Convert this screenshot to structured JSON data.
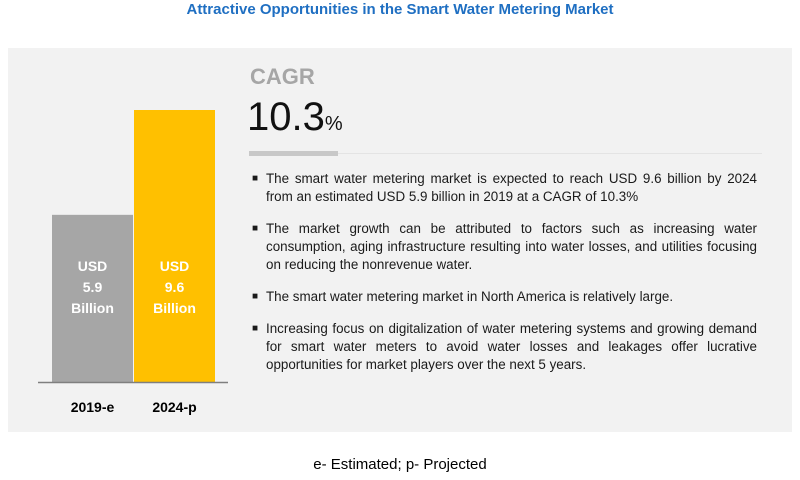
{
  "title": "Attractive Opportunities in the Smart Water Metering Market",
  "cagr": {
    "label": "CAGR",
    "value": "10.3",
    "unit": "%"
  },
  "bullets": [
    "The smart water metering market is expected to reach USD 9.6 billion by 2024 from an estimated USD 5.9 billion in 2019 at a CAGR of 10.3%",
    "The market growth can be attributed to factors such as increasing water consumption, aging infrastructure resulting into water losses, and utilities focusing on reducing the nonrevenue water.",
    "The smart water metering market in North America is relatively large.",
    "Increasing focus on digitalization of water metering systems and growing demand for smart water meters to avoid water losses and leakages offer lucrative opportunities for market players over the next 5 years."
  ],
  "footnote": "e- Estimated; p- Projected",
  "chart_data": {
    "type": "bar",
    "categories": [
      "2019-e",
      "2024-p"
    ],
    "values": [
      5.9,
      9.6
    ],
    "bar_labels": [
      [
        "USD",
        "5.9",
        "Billion"
      ],
      [
        "USD",
        "9.6",
        "Billion"
      ]
    ],
    "colors": [
      "#a6a6a6",
      "#ffc000"
    ],
    "axis_color": "#7f7f7f",
    "ylim": [
      0,
      9.6
    ],
    "grid": false
  }
}
